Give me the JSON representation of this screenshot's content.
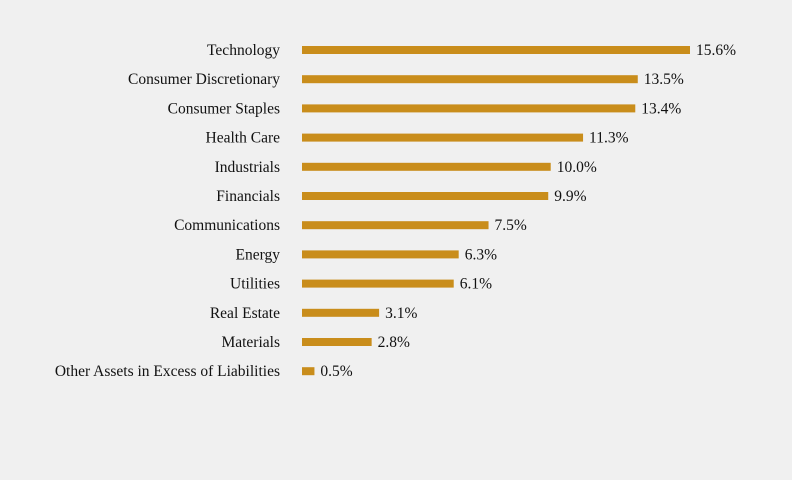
{
  "chart_data": {
    "type": "bar",
    "orientation": "horizontal",
    "categories": [
      "Technology",
      "Consumer Discretionary",
      "Consumer Staples",
      "Health Care",
      "Industrials",
      "Financials",
      "Communications",
      "Energy",
      "Utilities",
      "Real Estate",
      "Materials",
      "Other Assets in Excess of Liabilities"
    ],
    "values": [
      15.6,
      13.5,
      13.4,
      11.3,
      10.0,
      9.9,
      7.5,
      6.3,
      6.1,
      3.1,
      2.8,
      0.5
    ],
    "value_labels": [
      "15.6%",
      "13.5%",
      "13.4%",
      "11.3%",
      "10.0%",
      "9.9%",
      "7.5%",
      "6.3%",
      "6.1%",
      "3.1%",
      "2.8%",
      "0.5%"
    ],
    "unit": "%",
    "title": "",
    "xlabel": "",
    "ylabel": "",
    "xlim": [
      0,
      15.6
    ],
    "grid": false,
    "legend": "none",
    "colors": {
      "bar": "#c98d1b",
      "text": "#111111",
      "background": "#f0f0f0"
    }
  }
}
